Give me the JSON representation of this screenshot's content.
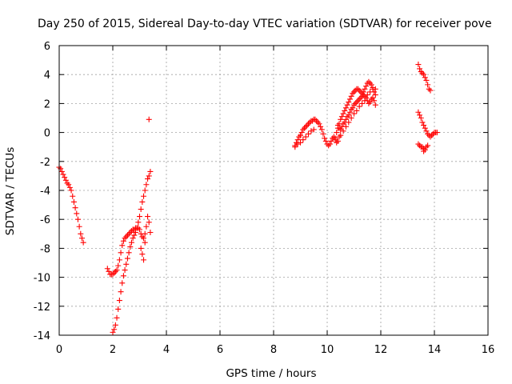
{
  "chart_data": {
    "type": "scatter",
    "title": "Day 250 of 2015, Sidereal Day-to-day VTEC variation (SDTVAR) for receiver pove",
    "xlabel": "GPS time / hours",
    "ylabel": "SDTVAR / TECUs",
    "xlim": [
      0,
      16
    ],
    "ylim": [
      -14,
      6
    ],
    "xticks": [
      0,
      2,
      4,
      6,
      8,
      10,
      12,
      14,
      16
    ],
    "yticks": [
      -14,
      -12,
      -10,
      -8,
      -6,
      -4,
      -2,
      0,
      2,
      4,
      6
    ],
    "grid": true,
    "marker": "+",
    "marker_color": "#ff0000",
    "series": [
      {
        "values": [
          [
            0.0,
            -2.4
          ],
          [
            0.05,
            -2.5
          ],
          [
            0.1,
            -2.7
          ],
          [
            0.15,
            -2.9
          ],
          [
            0.2,
            -3.1
          ],
          [
            0.25,
            -3.3
          ],
          [
            0.3,
            -3.5
          ],
          [
            0.35,
            -3.6
          ],
          [
            0.4,
            -3.8
          ],
          [
            0.45,
            -4.0
          ],
          [
            0.5,
            -4.4
          ],
          [
            0.55,
            -4.8
          ],
          [
            0.6,
            -5.2
          ],
          [
            0.65,
            -5.6
          ],
          [
            0.7,
            -6.0
          ],
          [
            0.75,
            -6.5
          ],
          [
            0.8,
            -7.0
          ],
          [
            0.85,
            -7.3
          ],
          [
            0.9,
            -7.6
          ],
          [
            1.8,
            -9.4
          ],
          [
            1.85,
            -9.6
          ],
          [
            1.9,
            -9.8
          ],
          [
            1.95,
            -9.8
          ],
          [
            2.0,
            -9.8
          ],
          [
            2.05,
            -9.7
          ],
          [
            2.1,
            -9.6
          ],
          [
            2.15,
            -9.5
          ],
          [
            2.2,
            -9.2
          ],
          [
            2.25,
            -8.8
          ],
          [
            2.3,
            -8.3
          ],
          [
            2.35,
            -7.8
          ],
          [
            2.4,
            -7.5
          ],
          [
            2.45,
            -7.3
          ],
          [
            2.5,
            -7.2
          ],
          [
            2.55,
            -7.1
          ],
          [
            2.6,
            -7.0
          ],
          [
            2.65,
            -6.9
          ],
          [
            2.7,
            -6.8
          ],
          [
            2.75,
            -6.7
          ],
          [
            2.8,
            -6.7
          ],
          [
            2.85,
            -6.6
          ],
          [
            2.9,
            -6.6
          ],
          [
            2.95,
            -6.6
          ],
          [
            3.0,
            -6.7
          ],
          [
            3.05,
            -7.0
          ],
          [
            3.1,
            -7.2
          ],
          [
            3.15,
            -7.3
          ],
          [
            3.2,
            -7.0
          ],
          [
            2.0,
            -13.8
          ],
          [
            2.05,
            -13.6
          ],
          [
            2.1,
            -13.3
          ],
          [
            2.15,
            -12.8
          ],
          [
            2.2,
            -12.2
          ],
          [
            2.25,
            -11.6
          ],
          [
            2.3,
            -11.0
          ],
          [
            2.35,
            -10.4
          ],
          [
            2.4,
            -9.9
          ],
          [
            2.45,
            -9.5
          ],
          [
            2.5,
            -9.1
          ],
          [
            2.55,
            -8.7
          ],
          [
            2.6,
            -8.3
          ],
          [
            2.65,
            -7.9
          ],
          [
            2.7,
            -7.6
          ],
          [
            2.75,
            -7.3
          ],
          [
            2.8,
            -7.1
          ],
          [
            2.85,
            -6.9
          ],
          [
            2.9,
            -6.6
          ],
          [
            2.95,
            -6.2
          ],
          [
            3.0,
            -5.8
          ],
          [
            3.05,
            -5.3
          ],
          [
            3.1,
            -4.8
          ],
          [
            3.15,
            -4.4
          ],
          [
            3.2,
            -4.0
          ],
          [
            3.25,
            -3.6
          ],
          [
            3.3,
            -3.2
          ],
          [
            3.35,
            -3.0
          ],
          [
            3.4,
            -2.7
          ],
          [
            3.05,
            -8.0
          ],
          [
            3.1,
            -8.4
          ],
          [
            3.15,
            -8.8
          ],
          [
            3.2,
            -7.6
          ],
          [
            3.25,
            -6.5
          ],
          [
            3.3,
            -5.8
          ],
          [
            3.35,
            -6.2
          ],
          [
            3.4,
            -6.9
          ],
          [
            3.35,
            0.9
          ],
          [
            8.8,
            -0.9
          ],
          [
            8.85,
            -0.7
          ],
          [
            8.9,
            -0.5
          ],
          [
            8.95,
            -0.3
          ],
          [
            9.0,
            -0.2
          ],
          [
            9.05,
            0.0
          ],
          [
            9.1,
            0.2
          ],
          [
            9.15,
            0.3
          ],
          [
            9.2,
            0.4
          ],
          [
            9.25,
            0.5
          ],
          [
            9.3,
            0.6
          ],
          [
            9.35,
            0.7
          ],
          [
            9.4,
            0.8
          ],
          [
            9.45,
            0.8
          ],
          [
            9.5,
            0.9
          ],
          [
            9.55,
            0.9
          ],
          [
            9.6,
            0.8
          ],
          [
            9.65,
            0.7
          ],
          [
            9.7,
            0.6
          ],
          [
            9.75,
            0.4
          ],
          [
            9.8,
            0.2
          ],
          [
            9.85,
            -0.1
          ],
          [
            9.9,
            -0.4
          ],
          [
            9.95,
            -0.6
          ],
          [
            10.0,
            -0.8
          ],
          [
            10.05,
            -0.9
          ],
          [
            10.1,
            -0.8
          ],
          [
            10.15,
            -0.6
          ],
          [
            10.2,
            -0.4
          ],
          [
            10.25,
            -0.3
          ],
          [
            10.3,
            -0.5
          ],
          [
            10.35,
            -0.7
          ],
          [
            10.4,
            -0.6
          ],
          [
            10.45,
            -0.3
          ],
          [
            8.8,
            -1.0
          ],
          [
            8.9,
            -0.8
          ],
          [
            9.0,
            -0.7
          ],
          [
            9.1,
            -0.5
          ],
          [
            9.2,
            -0.3
          ],
          [
            9.3,
            -0.1
          ],
          [
            9.4,
            0.1
          ],
          [
            9.5,
            0.2
          ],
          [
            10.3,
            -0.4
          ],
          [
            10.35,
            0.0
          ],
          [
            10.4,
            0.3
          ],
          [
            10.45,
            0.6
          ],
          [
            10.5,
            0.9
          ],
          [
            10.55,
            1.1
          ],
          [
            10.6,
            1.3
          ],
          [
            10.65,
            1.5
          ],
          [
            10.7,
            1.7
          ],
          [
            10.75,
            1.9
          ],
          [
            10.8,
            2.1
          ],
          [
            10.85,
            2.3
          ],
          [
            10.9,
            2.5
          ],
          [
            10.95,
            2.7
          ],
          [
            11.0,
            2.8
          ],
          [
            11.05,
            2.9
          ],
          [
            11.1,
            3.0
          ],
          [
            11.15,
            3.0
          ],
          [
            11.2,
            2.9
          ],
          [
            11.25,
            2.8
          ],
          [
            11.3,
            2.7
          ],
          [
            11.35,
            2.8
          ],
          [
            11.4,
            3.0
          ],
          [
            11.45,
            3.2
          ],
          [
            11.5,
            3.4
          ],
          [
            11.55,
            3.5
          ],
          [
            11.6,
            3.4
          ],
          [
            11.65,
            3.3
          ],
          [
            11.7,
            3.0
          ],
          [
            11.75,
            2.8
          ],
          [
            11.8,
            2.6
          ],
          [
            10.4,
            0.5
          ],
          [
            10.45,
            0.3
          ],
          [
            10.5,
            0.2
          ],
          [
            10.55,
            0.4
          ],
          [
            10.6,
            0.6
          ],
          [
            10.65,
            0.7
          ],
          [
            10.7,
            0.9
          ],
          [
            10.75,
            1.1
          ],
          [
            10.8,
            1.2
          ],
          [
            10.85,
            1.4
          ],
          [
            10.9,
            1.6
          ],
          [
            10.95,
            1.7
          ],
          [
            11.0,
            1.9
          ],
          [
            11.05,
            2.0
          ],
          [
            11.1,
            2.1
          ],
          [
            11.15,
            2.2
          ],
          [
            11.2,
            2.3
          ],
          [
            11.25,
            2.4
          ],
          [
            11.3,
            2.5
          ],
          [
            11.35,
            2.6
          ],
          [
            11.4,
            2.5
          ],
          [
            11.45,
            2.4
          ],
          [
            11.5,
            2.2
          ],
          [
            11.55,
            2.0
          ],
          [
            11.6,
            2.1
          ],
          [
            11.65,
            2.3
          ],
          [
            11.7,
            2.4
          ],
          [
            11.75,
            2.2
          ],
          [
            11.8,
            1.9
          ],
          [
            10.5,
            -0.2
          ],
          [
            10.6,
            0.1
          ],
          [
            10.7,
            0.4
          ],
          [
            10.8,
            0.7
          ],
          [
            10.9,
            1.0
          ],
          [
            11.0,
            1.3
          ],
          [
            11.1,
            1.5
          ],
          [
            11.2,
            1.8
          ],
          [
            11.3,
            2.0
          ],
          [
            11.4,
            2.2
          ],
          [
            11.5,
            2.6
          ],
          [
            11.6,
            2.8
          ],
          [
            11.7,
            3.1
          ],
          [
            11.8,
            3.0
          ],
          [
            13.4,
            4.7
          ],
          [
            13.45,
            4.4
          ],
          [
            13.5,
            4.2
          ],
          [
            13.55,
            4.1
          ],
          [
            13.6,
            4.0
          ],
          [
            13.65,
            3.8
          ],
          [
            13.7,
            3.6
          ],
          [
            13.75,
            3.3
          ],
          [
            13.8,
            3.0
          ],
          [
            13.85,
            2.9
          ],
          [
            13.4,
            1.4
          ],
          [
            13.45,
            1.2
          ],
          [
            13.5,
            1.0
          ],
          [
            13.55,
            0.7
          ],
          [
            13.6,
            0.5
          ],
          [
            13.65,
            0.3
          ],
          [
            13.7,
            0.1
          ],
          [
            13.75,
            -0.1
          ],
          [
            13.8,
            -0.2
          ],
          [
            13.85,
            -0.3
          ],
          [
            13.9,
            -0.2
          ],
          [
            13.95,
            -0.1
          ],
          [
            14.0,
            0.0
          ],
          [
            14.05,
            0.0
          ],
          [
            14.1,
            0.0
          ],
          [
            13.4,
            -0.8
          ],
          [
            13.45,
            -0.9
          ],
          [
            13.5,
            -1.0
          ],
          [
            13.55,
            -1.0
          ],
          [
            13.6,
            -1.1
          ],
          [
            13.65,
            -1.2
          ],
          [
            13.7,
            -1.0
          ],
          [
            13.75,
            -0.9
          ],
          [
            13.6,
            -1.3
          ]
        ]
      }
    ]
  }
}
